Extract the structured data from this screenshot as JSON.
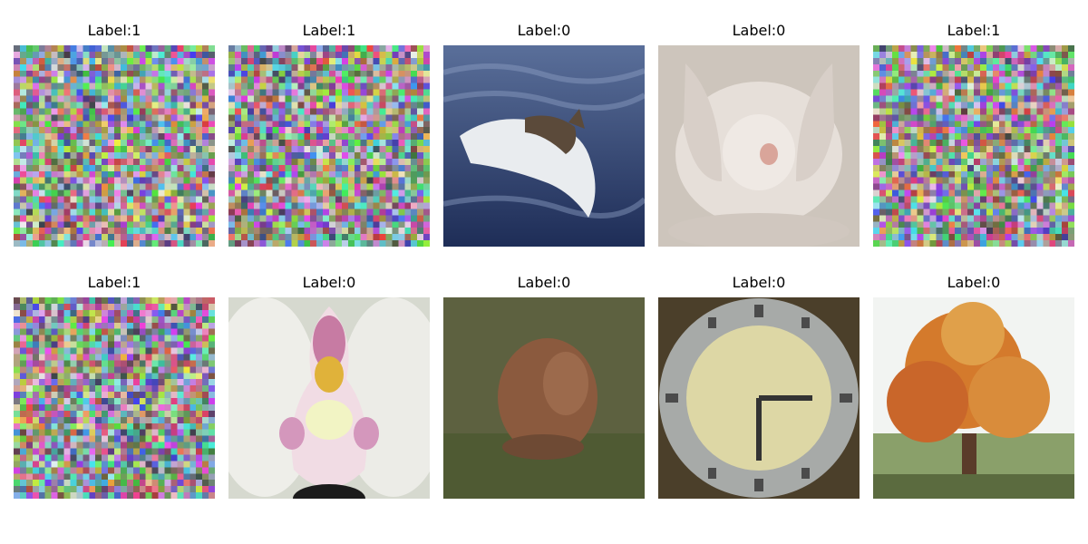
{
  "grid": {
    "tiles": [
      {
        "title": "Label:1",
        "content": "color-noise"
      },
      {
        "title": "Label:1",
        "content": "color-noise"
      },
      {
        "title": "Label:0",
        "content": "dolphin-in-water"
      },
      {
        "title": "Label:0",
        "content": "rabbit-face"
      },
      {
        "title": "Label:1",
        "content": "color-noise"
      },
      {
        "title": "Label:1",
        "content": "color-noise"
      },
      {
        "title": "Label:0",
        "content": "orchid-flower"
      },
      {
        "title": "Label:0",
        "content": "brown-animal-on-grass"
      },
      {
        "title": "Label:0",
        "content": "clock-face"
      },
      {
        "title": "Label:0",
        "content": "autumn-tree"
      }
    ]
  }
}
